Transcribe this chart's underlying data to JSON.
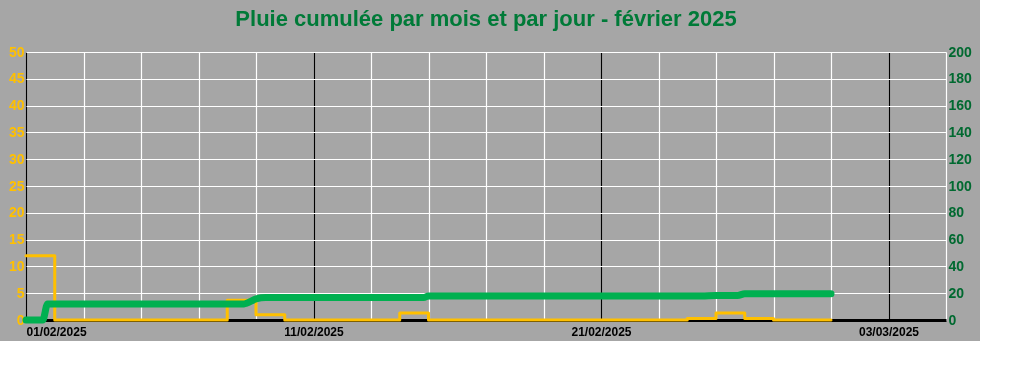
{
  "chart_data": {
    "type": "line",
    "title": "Pluie cumulée par mois et par jour - février 2025",
    "xlim": [
      "2025-02-01",
      "2025-03-05"
    ],
    "xticks": [
      {
        "value": "2025-02-01",
        "label": "01/02/2025"
      },
      {
        "value": "2025-02-03",
        "label": null
      },
      {
        "value": "2025-02-05",
        "label": null
      },
      {
        "value": "2025-02-07",
        "label": null
      },
      {
        "value": "2025-02-09",
        "label": null
      },
      {
        "value": "2025-02-11",
        "label": "11/02/2025"
      },
      {
        "value": "2025-02-13",
        "label": null
      },
      {
        "value": "2025-02-15",
        "label": null
      },
      {
        "value": "2025-02-17",
        "label": null
      },
      {
        "value": "2025-02-19",
        "label": null
      },
      {
        "value": "2025-02-21",
        "label": "21/02/2025"
      },
      {
        "value": "2025-02-23",
        "label": null
      },
      {
        "value": "2025-02-25",
        "label": null
      },
      {
        "value": "2025-02-27",
        "label": null
      },
      {
        "value": "2025-03-01",
        "label": null
      },
      {
        "value": "2025-03-03",
        "label": "03/03/2025"
      },
      {
        "value": "2025-03-05",
        "label": null
      }
    ],
    "ylim": [
      0,
      50
    ],
    "yticks": [
      0,
      5,
      10,
      15,
      20,
      25,
      30,
      35,
      40,
      45,
      50
    ],
    "y2lim": [
      0,
      200
    ],
    "y2ticks": [
      0,
      20,
      40,
      60,
      80,
      100,
      120,
      140,
      160,
      180,
      200
    ],
    "grid": true,
    "marker": "none",
    "line_style": "solid",
    "series": [
      {
        "type": "step",
        "color": "#ffc000",
        "x": [
          "2025-02-01",
          "2025-02-02",
          "2025-02-03",
          "2025-02-04",
          "2025-02-05",
          "2025-02-06",
          "2025-02-07",
          "2025-02-08",
          "2025-02-09",
          "2025-02-10",
          "2025-02-11",
          "2025-02-12",
          "2025-02-13",
          "2025-02-14",
          "2025-02-15",
          "2025-02-16",
          "2025-02-17",
          "2025-02-18",
          "2025-02-19",
          "2025-02-20",
          "2025-02-21",
          "2025-02-22",
          "2025-02-23",
          "2025-02-24",
          "2025-02-25",
          "2025-02-26",
          "2025-02-27",
          "2025-02-28",
          "2025-03-01"
        ],
        "values": [
          12,
          0,
          0,
          0,
          0,
          0,
          0,
          3.7,
          1,
          0,
          0,
          0,
          0,
          1.3,
          0,
          0,
          0,
          0,
          0,
          0,
          0,
          0,
          0,
          0.3,
          1.3,
          0.3,
          0,
          0,
          0
        ]
      },
      {
        "type": "line",
        "axis": "y2",
        "color": "#00b050",
        "x": [
          "2025-02-01T00:00",
          "2025-02-01T14:00",
          "2025-02-01T18:00",
          "2025-02-08T14:00",
          "2025-02-09T00:00",
          "2025-02-09T08:00",
          "2025-02-14T20:00",
          "2025-02-15T00:00",
          "2025-02-24T12:00",
          "2025-02-25T00:00",
          "2025-02-25T18:00",
          "2025-02-26T00:00",
          "2025-03-01T00:00"
        ],
        "values": [
          0,
          0,
          12,
          12,
          15.7,
          16.7,
          16.7,
          18,
          18,
          18.3,
          18.3,
          19.6,
          19.6
        ]
      }
    ]
  }
}
